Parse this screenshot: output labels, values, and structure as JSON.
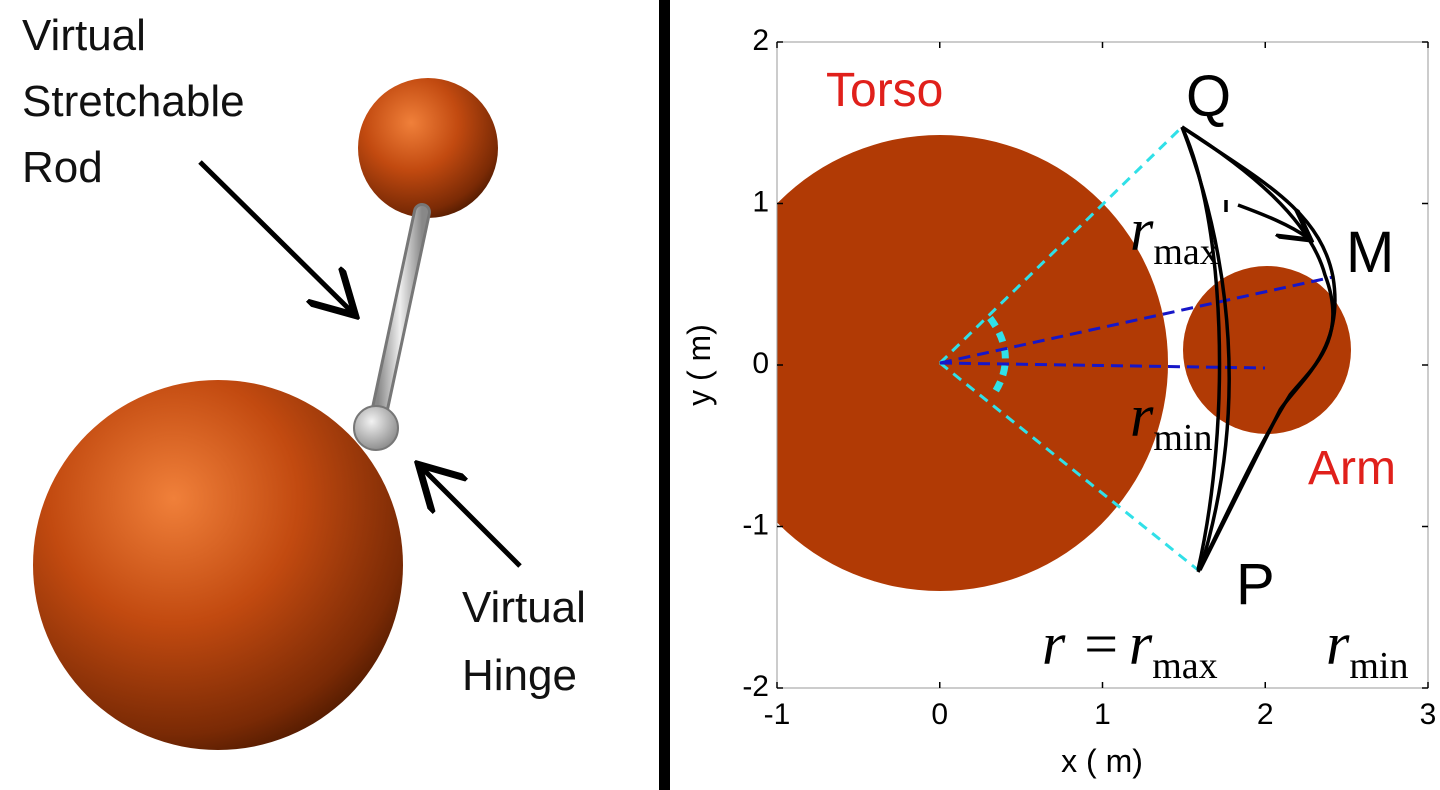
{
  "left": {
    "rod_label": [
      "Virtual",
      "Stretchable",
      "Rod"
    ],
    "hinge_label": [
      "Virtual",
      "Hinge"
    ]
  },
  "right": {
    "torso_label": "Torso",
    "arm_label": "Arm",
    "point_labels": [
      "Q",
      "M",
      "P"
    ],
    "r_max_label": {
      "symbol": "r",
      "subscript": "max"
    },
    "r_min_label": {
      "symbol": "r",
      "subscript": "min"
    },
    "equation": {
      "lhs": "r =",
      "symbol": "r",
      "subscript": "max"
    },
    "corner_label": {
      "symbol": "r",
      "subscript": "min"
    },
    "x_label": "x (  m)",
    "y_label": "y (  m)",
    "xlim": [
      -1,
      3
    ],
    "ylim": [
      -2,
      2
    ],
    "xticks": [
      -1,
      0,
      1,
      2,
      3
    ],
    "yticks": [
      -2,
      -1,
      0,
      1,
      2
    ]
  }
}
